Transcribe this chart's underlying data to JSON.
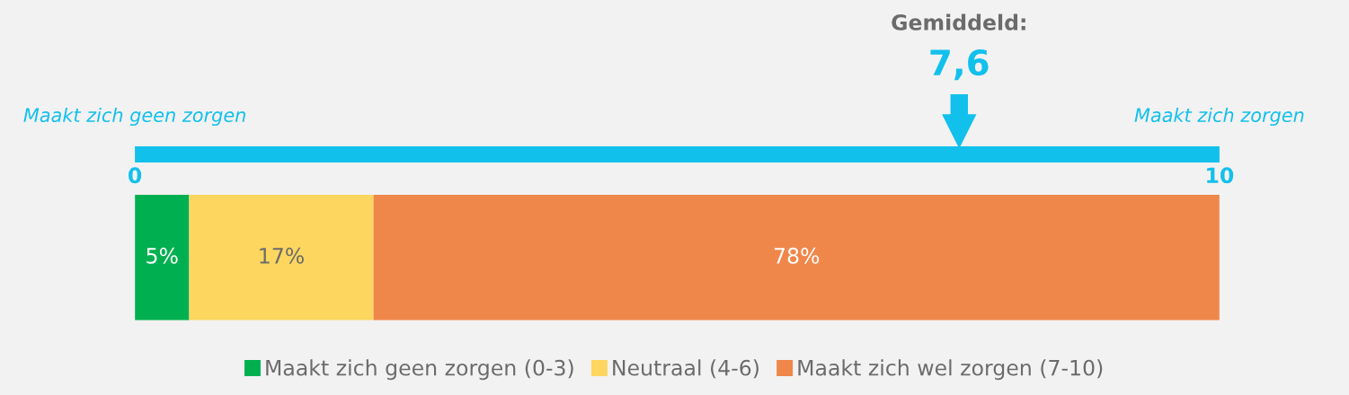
{
  "chart_data": {
    "type": "bar",
    "orientation": "horizontal",
    "stacked": true,
    "categories": [
      null
    ],
    "xlim": [
      0,
      100
    ],
    "series": [
      {
        "name": "Maakt zich geen zorgen (0-3)",
        "color": "#00b050",
        "values": [
          5
        ],
        "value_labels": [
          "5%"
        ]
      },
      {
        "name": "Neutraal (4-6)",
        "color": "#fdd65f",
        "values": [
          17
        ],
        "value_labels": [
          "17%"
        ]
      },
      {
        "name": "Maakt zich wel zorgen (7-10)",
        "color": "#f0874a",
        "values": [
          78
        ],
        "value_labels": [
          "78%"
        ]
      }
    ],
    "x2lim": [
      0,
      10
    ],
    "x2ticks": [
      0,
      10
    ],
    "ref_lines": [
      {
        "axis": "x2",
        "value": 7.6,
        "label": "7,6",
        "color": "#12c0ec"
      }
    ],
    "annotations": [
      "Maakt zich geen zorgen",
      "Maakt zich zorgen",
      "Gemiddeld:"
    ],
    "legend": "bottom"
  }
}
